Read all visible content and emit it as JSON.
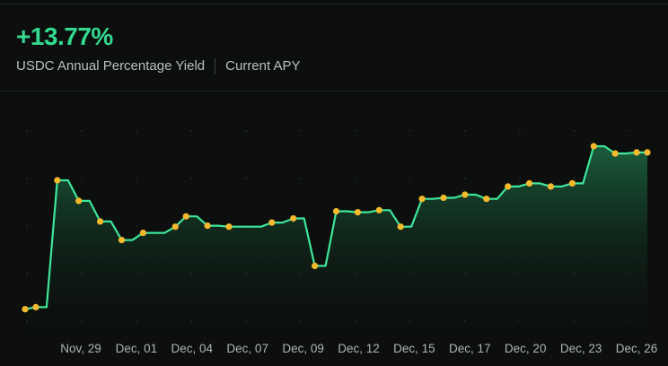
{
  "apy": {
    "value": "+13.77%",
    "label": "USDC Annual Percentage Yield",
    "current_label": "Current APY"
  },
  "colors": {
    "accent": "#33d98e",
    "line": "#3ee69a",
    "point": "#f5b92e",
    "background": "#0c0f0d"
  },
  "chart_data": {
    "type": "line",
    "title": "",
    "xlabel": "",
    "ylabel": "",
    "x_ticks": [
      "Nov, 29",
      "Dec, 01",
      "Dec, 04",
      "Dec, 07",
      "Dec, 09",
      "Dec, 12",
      "Dec, 15",
      "Dec, 17",
      "Dec, 20",
      "Dec, 23",
      "Dec, 26"
    ],
    "y_axis_visible": false,
    "grid": "dotted",
    "series": [
      {
        "values": [
          0.11,
          0.12,
          0.12,
          0.735,
          0.735,
          0.635,
          0.635,
          0.535,
          0.535,
          0.445,
          0.445,
          0.48,
          0.48,
          0.48,
          0.51,
          0.56,
          0.56,
          0.515,
          0.515,
          0.51,
          0.51,
          0.51,
          0.51,
          0.53,
          0.53,
          0.55,
          0.55,
          0.32,
          0.32,
          0.585,
          0.585,
          0.58,
          0.58,
          0.59,
          0.59,
          0.51,
          0.51,
          0.645,
          0.645,
          0.65,
          0.65,
          0.665,
          0.665,
          0.645,
          0.645,
          0.705,
          0.705,
          0.72,
          0.72,
          0.705,
          0.705,
          0.72,
          0.72,
          0.9,
          0.9,
          0.865,
          0.865,
          0.87,
          0.87
        ]
      }
    ]
  }
}
